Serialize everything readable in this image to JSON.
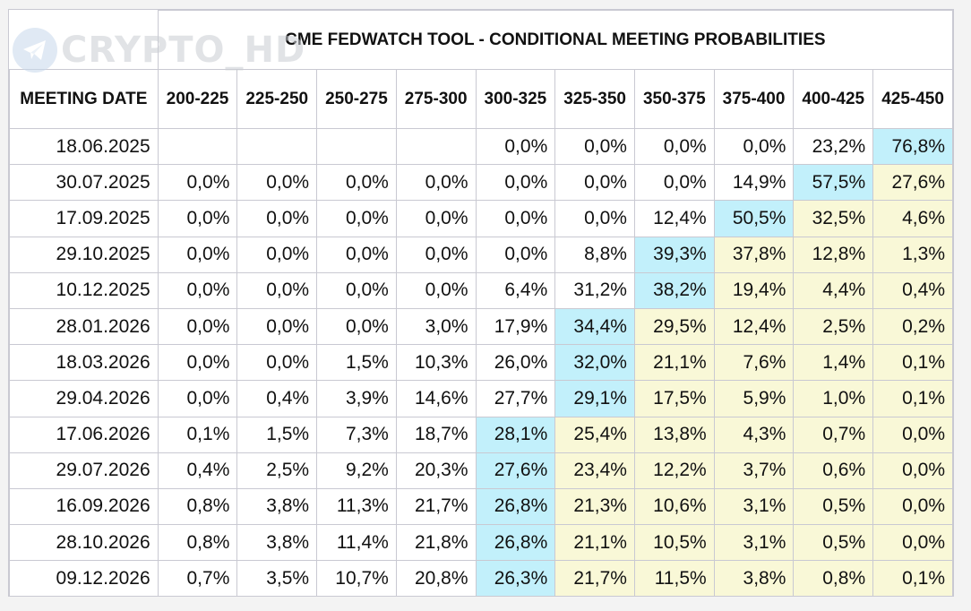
{
  "watermark": {
    "text": "CRYPTO_HD",
    "icon": "telegram-icon"
  },
  "title": "CME FEDWATCH TOOL - CONDITIONAL MEETING PROBABILITIES",
  "colors": {
    "highlight_max": "#c2f0fb",
    "highlight_above": "#f9f8d7",
    "border": "#c9c9d2"
  },
  "table": {
    "date_header": "MEETING DATE",
    "columns": [
      "200-225",
      "225-250",
      "250-275",
      "275-300",
      "300-325",
      "325-350",
      "350-375",
      "375-400",
      "400-425",
      "425-450"
    ],
    "rows": [
      {
        "date": "18.06.2025",
        "values": [
          "",
          "",
          "",
          "",
          "0,0%",
          "0,0%",
          "0,0%",
          "0,0%",
          "23,2%",
          "76,8%"
        ]
      },
      {
        "date": "30.07.2025",
        "values": [
          "0,0%",
          "0,0%",
          "0,0%",
          "0,0%",
          "0,0%",
          "0,0%",
          "0,0%",
          "14,9%",
          "57,5%",
          "27,6%"
        ]
      },
      {
        "date": "17.09.2025",
        "values": [
          "0,0%",
          "0,0%",
          "0,0%",
          "0,0%",
          "0,0%",
          "0,0%",
          "12,4%",
          "50,5%",
          "32,5%",
          "4,6%"
        ]
      },
      {
        "date": "29.10.2025",
        "values": [
          "0,0%",
          "0,0%",
          "0,0%",
          "0,0%",
          "0,0%",
          "8,8%",
          "39,3%",
          "37,8%",
          "12,8%",
          "1,3%"
        ]
      },
      {
        "date": "10.12.2025",
        "values": [
          "0,0%",
          "0,0%",
          "0,0%",
          "0,0%",
          "6,4%",
          "31,2%",
          "38,2%",
          "19,4%",
          "4,4%",
          "0,4%"
        ]
      },
      {
        "date": "28.01.2026",
        "values": [
          "0,0%",
          "0,0%",
          "0,0%",
          "3,0%",
          "17,9%",
          "34,4%",
          "29,5%",
          "12,4%",
          "2,5%",
          "0,2%"
        ]
      },
      {
        "date": "18.03.2026",
        "values": [
          "0,0%",
          "0,0%",
          "1,5%",
          "10,3%",
          "26,0%",
          "32,0%",
          "21,1%",
          "7,6%",
          "1,4%",
          "0,1%"
        ]
      },
      {
        "date": "29.04.2026",
        "values": [
          "0,0%",
          "0,4%",
          "3,9%",
          "14,6%",
          "27,7%",
          "29,1%",
          "17,5%",
          "5,9%",
          "1,0%",
          "0,1%"
        ]
      },
      {
        "date": "17.06.2026",
        "values": [
          "0,1%",
          "1,5%",
          "7,3%",
          "18,7%",
          "28,1%",
          "25,4%",
          "13,8%",
          "4,3%",
          "0,7%",
          "0,0%"
        ]
      },
      {
        "date": "29.07.2026",
        "values": [
          "0,4%",
          "2,5%",
          "9,2%",
          "20,3%",
          "27,6%",
          "23,4%",
          "12,2%",
          "3,7%",
          "0,6%",
          "0,0%"
        ]
      },
      {
        "date": "16.09.2026",
        "values": [
          "0,8%",
          "3,8%",
          "11,3%",
          "21,7%",
          "26,8%",
          "21,3%",
          "10,6%",
          "3,1%",
          "0,5%",
          "0,0%"
        ]
      },
      {
        "date": "28.10.2026",
        "values": [
          "0,8%",
          "3,8%",
          "11,4%",
          "21,8%",
          "26,8%",
          "21,1%",
          "10,5%",
          "3,1%",
          "0,5%",
          "0,0%"
        ]
      },
      {
        "date": "09.12.2026",
        "values": [
          "0,7%",
          "3,5%",
          "10,7%",
          "20,8%",
          "26,3%",
          "21,7%",
          "11,5%",
          "3,8%",
          "0,8%",
          "0,1%"
        ]
      }
    ],
    "highlight_col": [
      9,
      8,
      7,
      6,
      6,
      5,
      5,
      5,
      4,
      4,
      4,
      4,
      4
    ]
  }
}
